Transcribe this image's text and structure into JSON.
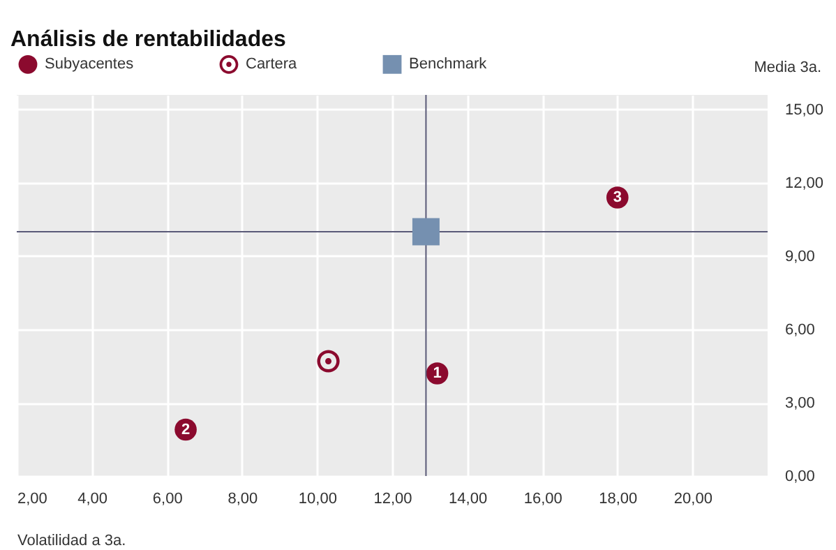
{
  "chart_data": {
    "type": "scatter",
    "title": "Análisis de rentabilidades",
    "xlabel": "Volatilidad a 3a.",
    "ylabel": "Media 3a.",
    "series": [
      {
        "name": "Subyacentes",
        "color": "#8b0a2e",
        "marker": "circle",
        "x": [
          13.2,
          6.5,
          18.0
        ],
        "values": [
          4.2,
          1.9,
          11.4
        ]
      },
      {
        "name": "Cartera",
        "color": "#8b0a2e",
        "marker": "circle-dot",
        "x": [
          10.3
        ],
        "values": [
          4.7
        ]
      },
      {
        "name": "Benchmark",
        "color": "#7590b0",
        "marker": "square",
        "x": [
          12.9
        ],
        "values": [
          10.0
        ]
      }
    ],
    "annotations": [
      {
        "text": "1",
        "x": 13.2,
        "y": 4.2
      },
      {
        "text": "2",
        "x": 6.5,
        "y": 1.9
      },
      {
        "text": "3",
        "x": 18.0,
        "y": 11.4
      }
    ],
    "ref_lines": [
      {
        "axis": "x",
        "value": 12.9,
        "color": "#5a5a78"
      },
      {
        "axis": "y",
        "value": 10.0,
        "color": "#5a5a78"
      }
    ],
    "xlim": [
      2,
      22
    ],
    "ylim": [
      0,
      15.6
    ],
    "xticks": [
      {
        "value": 2,
        "label": "2,00"
      },
      {
        "value": 4,
        "label": "4,00"
      },
      {
        "value": 6,
        "label": "6,00"
      },
      {
        "value": 8,
        "label": "8,00"
      },
      {
        "value": 10,
        "label": "10,00"
      },
      {
        "value": 12,
        "label": "12,00"
      },
      {
        "value": 14,
        "label": "14,00"
      },
      {
        "value": 16,
        "label": "16,00"
      },
      {
        "value": 18,
        "label": "18,00"
      },
      {
        "value": 20,
        "label": "20,00"
      }
    ],
    "yticks": [
      {
        "value": 0,
        "label": "0,00"
      },
      {
        "value": 3,
        "label": "3,00"
      },
      {
        "value": 6,
        "label": "6,00"
      },
      {
        "value": 9,
        "label": "9,00"
      },
      {
        "value": 12,
        "label": "12,00"
      },
      {
        "value": 15,
        "label": "15,00"
      }
    ],
    "grid": true,
    "legend": "top"
  }
}
